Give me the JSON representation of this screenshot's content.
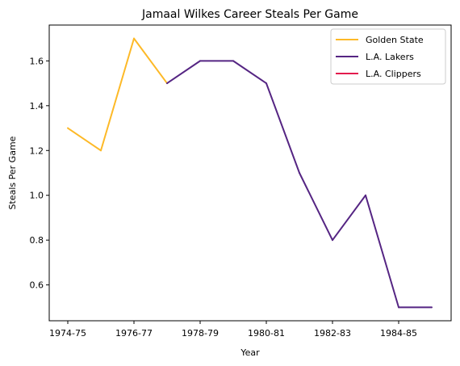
{
  "chart_data": {
    "type": "line",
    "title": "Jamaal Wilkes Career Steals Per Game",
    "xlabel": "Year",
    "ylabel": "Steals Per Game",
    "x_tick_labels": [
      "1974-75",
      "1976-77",
      "1978-79",
      "1980-81",
      "1982-83",
      "1984-85"
    ],
    "y_ticks": [
      "0.6",
      "0.8",
      "1.0",
      "1.2",
      "1.4",
      "1.6"
    ],
    "ylim": [
      0.44,
      1.76
    ],
    "legend_position": "top-right",
    "grid": false,
    "x_seasons": [
      "1974-75",
      "1975-76",
      "1976-77",
      "1977-78",
      "1978-79",
      "1979-80",
      "1980-81",
      "1981-82",
      "1982-83",
      "1983-84",
      "1984-85",
      "1985-86"
    ],
    "series": [
      {
        "name": "Golden State",
        "color": "#fdb927",
        "points": [
          {
            "season": "1974-75",
            "value": 1.3
          },
          {
            "season": "1975-76",
            "value": 1.2
          },
          {
            "season": "1976-77",
            "value": 1.7
          },
          {
            "season": "1977-78",
            "value": 1.5
          }
        ]
      },
      {
        "name": "L.A. Lakers",
        "color": "#552583",
        "points": [
          {
            "season": "1977-78",
            "value": 1.5
          },
          {
            "season": "1978-79",
            "value": 1.6
          },
          {
            "season": "1979-80",
            "value": 1.6
          },
          {
            "season": "1980-81",
            "value": 1.5
          },
          {
            "season": "1981-82",
            "value": 1.1
          },
          {
            "season": "1982-83",
            "value": 0.8
          },
          {
            "season": "1983-84",
            "value": 1.0
          },
          {
            "season": "1984-85",
            "value": 0.5
          },
          {
            "season": "1985-86",
            "value": 0.5
          }
        ]
      },
      {
        "name": "L.A. Clippers",
        "color": "#e31b4e",
        "points": []
      }
    ]
  }
}
